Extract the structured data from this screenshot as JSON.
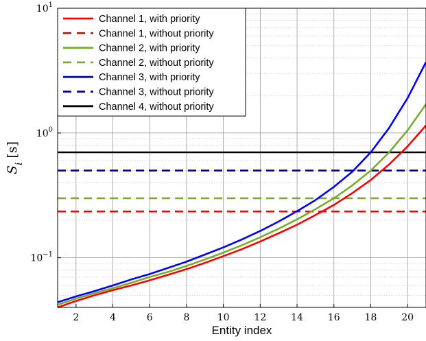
{
  "chart_data": {
    "type": "line",
    "title": "",
    "xlabel": "Entity index",
    "ylabel": "S_i [s]",
    "ylabel_parts": {
      "symbol": "S",
      "subscript": "i",
      "unit": "[s]"
    },
    "y_scale": "log",
    "xlim": [
      1,
      21
    ],
    "ylim": [
      0.04,
      10
    ],
    "x_ticks": [
      2,
      4,
      6,
      8,
      10,
      12,
      14,
      16,
      18,
      20
    ],
    "y_ticks": [
      {
        "value": 0.1,
        "base": "10",
        "exp": "−1"
      },
      {
        "value": 1,
        "base": "10",
        "exp": "0"
      },
      {
        "value": 10,
        "base": "10",
        "exp": "1"
      }
    ],
    "grid": true,
    "minor_grid": true,
    "legend_position": "top-left",
    "series": [
      {
        "name": "Channel 1, with priority",
        "color": "#ff0000",
        "dash": "solid",
        "x": [
          1,
          2,
          3,
          4,
          5,
          6,
          7,
          8,
          9,
          10,
          11,
          12,
          13,
          14,
          15,
          16,
          17,
          18,
          19,
          20,
          21
        ],
        "values": [
          0.04,
          0.045,
          0.05,
          0.055,
          0.06,
          0.066,
          0.073,
          0.081,
          0.091,
          0.103,
          0.117,
          0.135,
          0.157,
          0.184,
          0.22,
          0.265,
          0.33,
          0.42,
          0.56,
          0.78,
          1.15
        ]
      },
      {
        "name": "Channel 1, without priority",
        "color": "#ff0000",
        "dash": "dashed",
        "x": [
          1,
          21
        ],
        "values": [
          0.235,
          0.235
        ]
      },
      {
        "name": "Channel 2, with priority",
        "color": "#77ac30",
        "dash": "solid",
        "x": [
          1,
          2,
          3,
          4,
          5,
          6,
          7,
          8,
          9,
          10,
          11,
          12,
          13,
          14,
          15,
          16,
          17,
          18,
          19,
          20,
          21
        ],
        "values": [
          0.042,
          0.047,
          0.052,
          0.057,
          0.063,
          0.07,
          0.077,
          0.086,
          0.097,
          0.11,
          0.126,
          0.146,
          0.171,
          0.203,
          0.245,
          0.3,
          0.38,
          0.5,
          0.7,
          1.05,
          1.7
        ]
      },
      {
        "name": "Channel 2, without priority",
        "color": "#77ac30",
        "dash": "dashed",
        "x": [
          1,
          21
        ],
        "values": [
          0.3,
          0.3
        ]
      },
      {
        "name": "Channel 3, with priority",
        "color": "#0000ff",
        "dash": "solid",
        "x": [
          1,
          2,
          3,
          4,
          5,
          6,
          7,
          8,
          9,
          10,
          11,
          12,
          13,
          14,
          15,
          16,
          17,
          18,
          19,
          20,
          21
        ],
        "values": [
          0.044,
          0.049,
          0.054,
          0.06,
          0.067,
          0.074,
          0.083,
          0.093,
          0.106,
          0.121,
          0.14,
          0.164,
          0.195,
          0.236,
          0.29,
          0.37,
          0.49,
          0.7,
          1.1,
          1.9,
          3.7
        ]
      },
      {
        "name": "Channel 3, without priority",
        "color": "#00008b",
        "dash": "dashed",
        "x": [
          1,
          21
        ],
        "values": [
          0.5,
          0.5
        ]
      },
      {
        "name": "Channel 4, without priority",
        "color": "#000000",
        "dash": "solid",
        "x": [
          1,
          21
        ],
        "values": [
          0.7,
          0.7
        ]
      }
    ]
  }
}
